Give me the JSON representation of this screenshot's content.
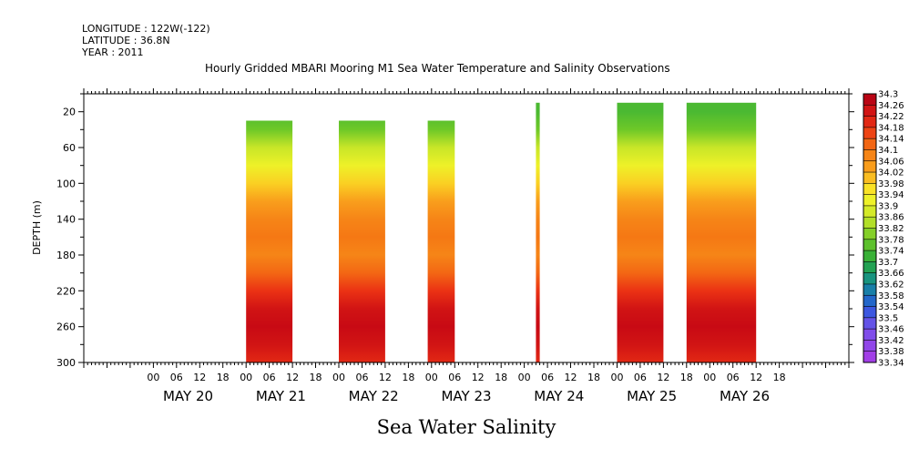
{
  "header": {
    "longitude": "LONGITUDE : 122W(-122)",
    "latitude": "LATITUDE : 36.8N",
    "year": "YEAR : 2011"
  },
  "footer_title": "Sea Water Salinity",
  "chart_data": {
    "type": "heatmap",
    "title": "Hourly Gridded MBARI Mooring M1 Sea Water Temperature and Salinity Observations",
    "ylabel": "DEPTH (m)",
    "xlabel": "",
    "y_reversed": true,
    "ylim": [
      300,
      0
    ],
    "y_ticks": [
      20,
      60,
      100,
      140,
      180,
      220,
      260,
      300
    ],
    "xlim_hours_from_may20_00": [
      -18,
      180
    ],
    "x_hour_ticks": [
      "00",
      "06",
      "12",
      "18",
      "00",
      "06",
      "12",
      "18",
      "00",
      "06",
      "12",
      "18",
      "00",
      "06",
      "12",
      "18",
      "00",
      "06",
      "12",
      "18",
      "00",
      "06",
      "12",
      "18",
      "00",
      "06",
      "12",
      "18"
    ],
    "x_day_labels": [
      "MAY 20",
      "MAY 21",
      "MAY 22",
      "MAY 23",
      "MAY 24",
      "MAY 25",
      "MAY 26"
    ],
    "colorbar": {
      "min": 33.34,
      "max": 34.3,
      "labels": [
        "34.3",
        "34.26",
        "34.22",
        "34.18",
        "34.14",
        "34.1",
        "34.06",
        "34.02",
        "33.98",
        "33.94",
        "33.9",
        "33.86",
        "33.82",
        "33.78",
        "33.74",
        "33.7",
        "33.66",
        "33.62",
        "33.58",
        "33.54",
        "33.5",
        "33.46",
        "33.42",
        "33.38",
        "33.34"
      ]
    },
    "profile_depth": [
      20,
      40,
      60,
      80,
      100,
      120,
      140,
      160,
      180,
      200,
      220,
      240,
      260,
      280,
      300
    ],
    "profile_salinity": [
      33.74,
      33.78,
      33.86,
      33.92,
      33.98,
      34.04,
      34.08,
      34.1,
      34.08,
      34.12,
      34.18,
      34.24,
      34.26,
      34.24,
      34.2
    ],
    "data_blocks": [
      {
        "start": "MAY 21 00",
        "end": "MAY 21 12",
        "top_depth": 40,
        "bottom_depth": 300
      },
      {
        "start": "MAY 22 00",
        "end": "MAY 22 12",
        "top_depth": 40,
        "bottom_depth": 300
      },
      {
        "start": "MAY 22 23",
        "end": "MAY 23 06",
        "top_depth": 40,
        "bottom_depth": 300
      },
      {
        "start": "MAY 24 03",
        "end": "MAY 24 04",
        "top_depth": 20,
        "bottom_depth": 300
      },
      {
        "start": "MAY 25 00",
        "end": "MAY 25 12",
        "top_depth": 20,
        "bottom_depth": 300
      },
      {
        "start": "MAY 25 18",
        "end": "MAY 26 12",
        "top_depth": 20,
        "bottom_depth": 300
      }
    ]
  }
}
